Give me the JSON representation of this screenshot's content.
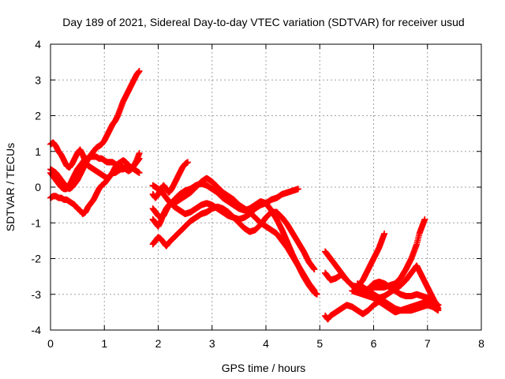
{
  "chart_data": {
    "type": "scatter",
    "title": "Day 189 of 2021, Sidereal Day-to-day VTEC variation (SDTVAR) for receiver usud",
    "xlabel": "GPS time / hours",
    "ylabel": "SDTVAR / TECUs",
    "xlim": [
      0,
      8
    ],
    "ylim": [
      -4,
      4
    ],
    "x_ticks": [
      "0",
      "1",
      "2",
      "3",
      "4",
      "5",
      "6",
      "7",
      "8"
    ],
    "y_ticks": [
      "-4",
      "-3",
      "-2",
      "-1",
      "0",
      "1",
      "2",
      "3",
      "4"
    ],
    "grid": true,
    "marker": "plus",
    "color": "#ff0000",
    "series": [
      {
        "segments": [
          {
            "x": [
              0.0,
              0.05,
              0.1,
              0.15,
              0.2,
              0.25,
              0.3,
              0.35,
              0.4,
              0.45,
              0.5,
              0.55,
              0.6,
              0.65,
              0.7,
              0.75,
              0.8,
              0.85,
              0.9,
              0.95,
              1.0,
              1.05,
              1.1,
              1.15,
              1.2,
              1.25,
              1.3,
              1.35,
              1.4,
              1.45,
              1.5,
              1.55,
              1.6,
              1.65
            ],
            "y": [
              -0.3,
              -0.25,
              -0.25,
              -0.3,
              -0.3,
              -0.35,
              -0.35,
              -0.4,
              -0.45,
              -0.5,
              -0.6,
              -0.65,
              -0.75,
              -0.7,
              -0.55,
              -0.45,
              -0.35,
              -0.2,
              -0.05,
              0.05,
              0.1,
              0.2,
              0.3,
              0.4,
              0.4,
              0.45,
              0.5,
              0.5,
              0.55,
              0.5,
              0.55,
              0.5,
              0.45,
              0.4
            ]
          }
        ]
      },
      {
        "segments": [
          {
            "x": [
              0.0,
              0.05,
              0.1,
              0.15,
              0.2,
              0.25,
              0.3,
              0.35,
              0.4,
              0.45,
              0.5,
              0.55,
              0.6,
              0.65,
              0.7,
              0.75,
              0.8,
              0.85,
              0.9,
              0.95,
              1.0,
              1.05,
              1.1,
              1.15,
              1.2,
              1.25,
              1.3,
              1.35,
              1.4,
              1.45,
              1.5,
              1.55,
              1.6,
              1.65
            ],
            "y": [
              0.4,
              0.3,
              0.2,
              0.1,
              0.0,
              -0.05,
              -0.05,
              0.05,
              0.2,
              0.35,
              0.5,
              0.6,
              0.7,
              0.8,
              0.8,
              0.85,
              0.85,
              0.85,
              0.8,
              0.8,
              0.75,
              0.7,
              0.7,
              0.7,
              0.65,
              0.6,
              0.6,
              0.55,
              0.5,
              0.45,
              0.5,
              0.6,
              0.75,
              0.95
            ]
          }
        ]
      },
      {
        "segments": [
          {
            "x": [
              0.0,
              0.05,
              0.1,
              0.15,
              0.2,
              0.25,
              0.3,
              0.35,
              0.4,
              0.45,
              0.5,
              0.55,
              0.6,
              0.65,
              0.7,
              0.75,
              0.8,
              0.85,
              0.9,
              0.95,
              1.0,
              1.05,
              1.1,
              1.15,
              1.2,
              1.25,
              1.3,
              1.35,
              1.4,
              1.45,
              1.5,
              1.55,
              1.6,
              1.65
            ],
            "y": [
              1.2,
              1.25,
              1.15,
              1.0,
              0.9,
              0.75,
              0.6,
              0.55,
              0.65,
              0.8,
              0.95,
              1.05,
              0.9,
              0.7,
              0.6,
              0.55,
              0.5,
              0.45,
              0.4,
              0.35,
              0.3,
              0.25,
              0.3,
              0.4,
              0.55,
              0.65,
              0.7,
              0.75,
              0.7,
              0.6,
              0.55,
              0.6,
              0.7,
              0.8
            ]
          }
        ]
      },
      {
        "segments": [
          {
            "x": [
              0.0,
              0.05,
              0.1,
              0.15,
              0.2,
              0.25,
              0.3,
              0.35,
              0.4,
              0.45,
              0.5,
              0.55,
              0.6,
              0.65,
              0.7,
              0.75,
              0.8,
              0.85,
              0.9,
              0.95,
              1.0,
              1.05,
              1.1,
              1.15,
              1.2,
              1.25,
              1.3,
              1.35,
              1.4,
              1.45,
              1.5,
              1.55,
              1.6,
              1.65
            ],
            "y": [
              0.5,
              0.45,
              0.4,
              0.3,
              0.2,
              0.1,
              0.0,
              -0.05,
              0.0,
              0.1,
              0.2,
              0.35,
              0.5,
              0.65,
              0.8,
              0.9,
              1.0,
              1.1,
              1.15,
              1.2,
              1.3,
              1.45,
              1.6,
              1.75,
              1.85,
              2.0,
              2.2,
              2.4,
              2.55,
              2.7,
              2.85,
              3.0,
              3.15,
              3.25
            ]
          }
        ]
      },
      {
        "segments": [
          {
            "x": [
              1.9,
              1.95,
              2.0,
              2.05,
              2.1,
              2.15,
              2.2,
              2.3,
              2.4,
              2.5,
              2.6,
              2.7,
              2.8,
              2.9,
              3.0,
              3.1,
              3.2,
              3.3,
              3.4,
              3.5,
              3.6,
              3.7,
              3.8,
              3.9,
              4.0,
              4.1,
              4.2,
              4.3,
              4.4,
              4.5,
              4.6
            ],
            "y": [
              0.05,
              0.0,
              -0.05,
              -0.1,
              -0.2,
              -0.3,
              -0.4,
              -0.55,
              -0.65,
              -0.75,
              -0.7,
              -0.6,
              -0.5,
              -0.45,
              -0.5,
              -0.6,
              -0.7,
              -0.8,
              -0.85,
              -0.9,
              -0.85,
              -0.75,
              -0.6,
              -0.5,
              -0.45,
              -0.35,
              -0.3,
              -0.2,
              -0.15,
              -0.1,
              -0.05
            ]
          }
        ]
      },
      {
        "segments": [
          {
            "x": [
              1.9,
              1.95,
              2.0,
              2.05,
              2.1,
              2.15,
              2.2,
              2.3,
              2.4,
              2.5,
              2.6,
              2.7,
              2.8,
              2.9,
              3.0,
              3.1,
              3.2,
              3.3,
              3.4,
              3.5,
              3.6,
              3.7,
              3.8,
              3.9,
              4.0,
              4.1,
              4.2,
              4.3,
              4.4,
              4.5,
              4.6,
              4.7,
              4.8,
              4.9,
              4.95
            ],
            "y": [
              -0.6,
              -0.7,
              -0.8,
              -0.85,
              -0.8,
              -0.65,
              -0.5,
              -0.35,
              -0.2,
              -0.1,
              -0.05,
              0.05,
              0.1,
              0.05,
              -0.05,
              -0.15,
              -0.3,
              -0.4,
              -0.5,
              -0.6,
              -0.65,
              -0.6,
              -0.5,
              -0.4,
              -0.45,
              -0.65,
              -0.9,
              -1.2,
              -1.55,
              -1.9,
              -2.2,
              -2.5,
              -2.75,
              -2.95,
              -3.0
            ]
          }
        ]
      },
      {
        "segments": [
          {
            "x": [
              1.9,
              1.95,
              2.0,
              2.05,
              2.1,
              2.15,
              2.2,
              2.3,
              2.4,
              2.5,
              2.6,
              2.7,
              2.8,
              2.9,
              3.0,
              3.1,
              3.2,
              3.3,
              3.4,
              3.5,
              3.6,
              3.7,
              3.8,
              3.9,
              4.0,
              4.1,
              4.2,
              4.3,
              4.4,
              4.5,
              4.6,
              4.7,
              4.8,
              4.9
            ],
            "y": [
              -1.6,
              -1.5,
              -1.4,
              -1.45,
              -1.55,
              -1.65,
              -1.55,
              -1.4,
              -1.25,
              -1.1,
              -0.95,
              -0.85,
              -0.75,
              -0.7,
              -0.6,
              -0.55,
              -0.6,
              -0.7,
              -0.85,
              -1.0,
              -1.15,
              -1.25,
              -1.2,
              -1.05,
              -0.85,
              -0.7,
              -0.7,
              -0.85,
              -1.05,
              -1.3,
              -1.55,
              -1.8,
              -2.1,
              -2.3
            ]
          }
        ]
      },
      {
        "segments": [
          {
            "x": [
              1.9,
              1.95,
              2.0,
              2.05,
              2.1,
              2.15,
              2.2,
              2.25,
              2.3,
              2.35,
              2.4,
              2.45,
              2.5,
              2.55
            ],
            "y": [
              -0.2,
              -0.3,
              -0.2,
              -0.05,
              0.05,
              -0.05,
              -0.15,
              -0.05,
              0.1,
              0.25,
              0.4,
              0.55,
              0.65,
              0.7
            ]
          }
        ]
      },
      {
        "segments": [
          {
            "x": [
              1.9,
              1.95,
              2.0,
              2.05,
              2.1,
              2.15,
              2.2,
              2.3,
              2.4,
              2.5,
              2.6,
              2.7,
              2.8,
              2.9,
              3.0,
              3.1,
              3.2,
              3.3,
              3.4,
              3.5,
              3.6,
              3.7,
              3.8,
              3.9,
              4.0,
              4.1,
              4.2,
              4.3,
              4.4,
              4.5,
              4.6,
              4.7,
              4.8,
              4.9
            ],
            "y": [
              -0.9,
              -1.0,
              -1.1,
              -0.95,
              -0.75,
              -0.6,
              -0.5,
              -0.45,
              -0.35,
              -0.25,
              -0.15,
              0.0,
              0.15,
              0.25,
              0.15,
              0.0,
              -0.15,
              -0.25,
              -0.35,
              -0.5,
              -0.6,
              -0.7,
              -0.85,
              -1.0,
              -1.1,
              -1.2,
              -1.3,
              -1.5,
              -1.7,
              -1.95,
              -2.2,
              -2.45,
              -2.7,
              -2.9
            ]
          }
        ]
      },
      {
        "segments": [
          {
            "x": [
              5.1,
              5.15,
              5.2,
              5.3,
              5.4,
              5.5,
              5.6,
              5.7,
              5.8,
              5.9,
              6.0,
              6.1,
              6.2,
              6.3,
              6.4,
              6.5,
              6.6,
              6.7,
              6.8,
              6.9,
              7.0,
              7.1,
              7.2
            ],
            "y": [
              -2.4,
              -2.5,
              -2.6,
              -2.55,
              -2.45,
              -2.6,
              -2.75,
              -2.85,
              -2.9,
              -2.85,
              -2.7,
              -2.65,
              -2.7,
              -2.8,
              -2.9,
              -3.0,
              -3.05,
              -3.05,
              -3.0,
              -3.05,
              -3.1,
              -3.2,
              -3.3
            ]
          }
        ]
      },
      {
        "segments": [
          {
            "x": [
              5.1,
              5.15,
              5.2,
              5.3,
              5.4,
              5.5,
              5.6,
              5.7,
              5.8,
              5.9,
              6.0,
              6.1,
              6.2,
              6.3,
              6.4,
              6.5,
              6.6,
              6.7,
              6.8,
              6.9,
              7.0,
              7.1,
              7.2
            ],
            "y": [
              -3.6,
              -3.7,
              -3.6,
              -3.5,
              -3.4,
              -3.3,
              -3.35,
              -3.45,
              -3.55,
              -3.45,
              -3.3,
              -3.2,
              -3.3,
              -3.4,
              -3.5,
              -3.45,
              -3.4,
              -3.35,
              -3.3,
              -3.25,
              -3.2,
              -3.25,
              -3.3
            ]
          }
        ]
      },
      {
        "segments": [
          {
            "x": [
              5.1,
              5.15,
              5.2,
              5.3,
              5.4,
              5.5,
              5.6,
              5.7,
              5.8,
              5.9,
              6.0,
              6.1,
              6.2
            ],
            "y": [
              -1.8,
              -1.9,
              -2.0,
              -2.2,
              -2.4,
              -2.6,
              -2.75,
              -2.8,
              -2.6,
              -2.3,
              -2.0,
              -1.7,
              -1.3
            ]
          }
        ]
      },
      {
        "segments": [
          {
            "x": [
              5.8,
              5.9,
              6.0,
              6.1,
              6.2,
              6.3,
              6.4,
              6.5,
              6.6,
              6.7,
              6.8,
              6.85,
              6.9,
              6.95
            ],
            "y": [
              -3.0,
              -2.9,
              -2.8,
              -2.8,
              -2.8,
              -2.75,
              -2.7,
              -2.55,
              -2.3,
              -2.0,
              -1.6,
              -1.3,
              -1.1,
              -0.9
            ]
          }
        ]
      },
      {
        "segments": [
          {
            "x": [
              5.6,
              5.7,
              5.8,
              5.9,
              6.0,
              6.1,
              6.2,
              6.3,
              6.4,
              6.5,
              6.6,
              6.7,
              6.8,
              6.9,
              7.0,
              7.1,
              7.2
            ],
            "y": [
              -2.9,
              -2.95,
              -3.0,
              -3.05,
              -3.1,
              -3.1,
              -3.05,
              -2.95,
              -2.85,
              -2.75,
              -2.6,
              -2.4,
              -2.2,
              -2.5,
              -2.8,
              -3.1,
              -3.4
            ]
          }
        ]
      },
      {
        "segments": [
          {
            "x": [
              5.7,
              5.8,
              5.9,
              6.0,
              6.1,
              6.2,
              6.3,
              6.4,
              6.5,
              6.6,
              6.7,
              6.8,
              6.9,
              7.0,
              7.1,
              7.2
            ],
            "y": [
              -2.7,
              -2.8,
              -2.9,
              -3.0,
              -3.1,
              -3.2,
              -3.3,
              -3.4,
              -3.45,
              -3.45,
              -3.45,
              -3.4,
              -3.35,
              -3.3,
              -3.35,
              -3.45
            ]
          }
        ]
      }
    ]
  }
}
